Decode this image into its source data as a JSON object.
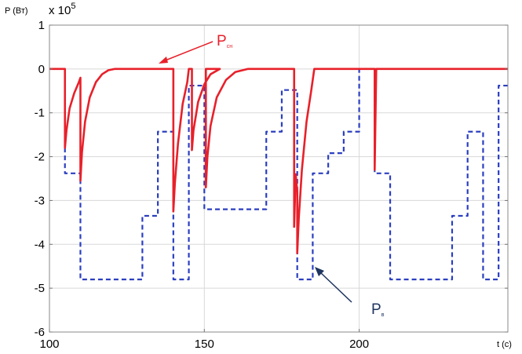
{
  "chart_data": {
    "type": "line",
    "ylabel": "P (Вт)",
    "xlabel": "t (c)",
    "y_multiplier": "x 10",
    "y_exponent": "5",
    "xlim": [
      100,
      248
    ],
    "ylim": [
      -6,
      1
    ],
    "x_ticks": [
      100,
      150,
      200
    ],
    "y_ticks": [
      1,
      0,
      -1,
      -2,
      -3,
      -4,
      -5,
      -6
    ],
    "x_tick_labels": [
      "100",
      "150",
      "200"
    ],
    "y_tick_labels": [
      "1",
      "0",
      "-1",
      "-2",
      "-3",
      "-4",
      "-5",
      "-6"
    ],
    "grid": true,
    "series": [
      {
        "name": "Pсн",
        "color": "#e8202a",
        "style": "solid",
        "points": [
          [
            100,
            0
          ],
          [
            105,
            0
          ],
          [
            105,
            -1.8
          ],
          [
            105.5,
            -1.4
          ],
          [
            106.5,
            -0.9
          ],
          [
            108,
            -0.55
          ],
          [
            109.5,
            -0.3
          ],
          [
            110,
            -0.2
          ],
          [
            110,
            -2.55
          ],
          [
            110.5,
            -1.9
          ],
          [
            111.5,
            -1.2
          ],
          [
            113,
            -0.65
          ],
          [
            115,
            -0.3
          ],
          [
            117,
            -0.12
          ],
          [
            119,
            -0.03
          ],
          [
            121,
            0
          ],
          [
            140,
            0
          ],
          [
            140,
            -3.25
          ],
          [
            140.5,
            -2.6
          ],
          [
            141.5,
            -1.7
          ],
          [
            143,
            -0.8
          ],
          [
            144.5,
            -0.3
          ],
          [
            145,
            0
          ],
          [
            146,
            0
          ],
          [
            146,
            -1.85
          ],
          [
            146.5,
            -1.4
          ],
          [
            148,
            -0.75
          ],
          [
            150,
            -0.35
          ],
          [
            152,
            -0.12
          ],
          [
            155,
            0
          ],
          [
            150.5,
            0
          ],
          [
            150.5,
            -2.7
          ],
          [
            151,
            -2.0
          ],
          [
            152,
            -1.3
          ],
          [
            154,
            -0.65
          ],
          [
            157,
            -0.25
          ],
          [
            160,
            -0.07
          ],
          [
            164,
            0
          ],
          [
            179,
            0
          ],
          [
            179,
            -3.6
          ],
          [
            179.5,
            -2.4
          ],
          [
            180,
            -2.8
          ],
          [
            180,
            -4.2
          ],
          [
            180.5,
            -3.4
          ],
          [
            181.5,
            -2.3
          ],
          [
            183,
            -1.2
          ],
          [
            184.5,
            -0.5
          ],
          [
            185.5,
            0
          ],
          [
            205,
            0
          ],
          [
            205,
            -2.3
          ],
          [
            205.5,
            0
          ],
          [
            248,
            0
          ]
        ],
        "label": "Pсн"
      },
      {
        "name": "Pв",
        "color": "#2b3fc0",
        "style": "dashed",
        "points": [
          [
            100,
            0
          ],
          [
            105,
            0
          ],
          [
            105,
            -2.38
          ],
          [
            110,
            -2.38
          ],
          [
            110,
            -4.8
          ],
          [
            130,
            -4.8
          ],
          [
            130,
            -3.35
          ],
          [
            135,
            -3.35
          ],
          [
            135,
            -1.43
          ],
          [
            140,
            -1.43
          ],
          [
            140,
            -4.8
          ],
          [
            145,
            -4.8
          ],
          [
            145,
            -0.38
          ],
          [
            150,
            -0.38
          ],
          [
            150,
            -3.2
          ],
          [
            170,
            -3.2
          ],
          [
            170,
            -1.43
          ],
          [
            175,
            -1.43
          ],
          [
            175,
            -0.48
          ],
          [
            180,
            -0.48
          ],
          [
            180,
            -4.8
          ],
          [
            185,
            -4.8
          ],
          [
            185,
            -2.38
          ],
          [
            190,
            -2.38
          ],
          [
            190,
            -1.92
          ],
          [
            195,
            -1.92
          ],
          [
            195,
            -1.43
          ],
          [
            200,
            -1.43
          ],
          [
            200,
            0
          ],
          [
            205,
            0
          ],
          [
            205,
            -2.38
          ],
          [
            210,
            -2.38
          ],
          [
            210,
            -4.8
          ],
          [
            230,
            -4.8
          ],
          [
            230,
            -3.35
          ],
          [
            235,
            -3.35
          ],
          [
            235,
            -1.43
          ],
          [
            240,
            -1.43
          ],
          [
            240,
            -4.8
          ],
          [
            245,
            -4.8
          ],
          [
            245,
            -0.38
          ],
          [
            248,
            -0.38
          ]
        ],
        "label": "Pв"
      }
    ]
  }
}
